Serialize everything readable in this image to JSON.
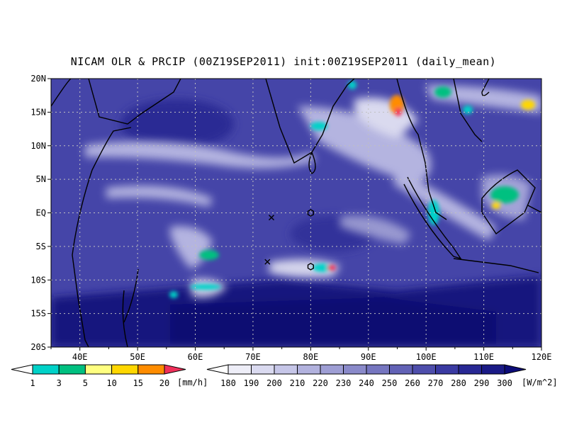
{
  "title": "NICAM OLR & PRCIP (00Z19SEP2011) init:00Z19SEP2011 (daily_mean)",
  "map": {
    "lat_range": [
      -20,
      20
    ],
    "lon_range": [
      35,
      120
    ],
    "lat_ticks": [
      "20N",
      "15N",
      "10N",
      "5N",
      "EQ",
      "5S",
      "10S",
      "15S",
      "20S"
    ],
    "lon_ticks": [
      "40E",
      "50E",
      "60E",
      "70E",
      "80E",
      "90E",
      "100E",
      "110E",
      "120E"
    ],
    "grid": "dotted",
    "markers": [
      {
        "type": "cross-icon",
        "lon": 73.2,
        "lat": -0.7
      },
      {
        "type": "hexagon-icon",
        "lon": 80.0,
        "lat": 0.0
      },
      {
        "type": "cross-icon",
        "lon": 72.5,
        "lat": -7.3
      },
      {
        "type": "hexagon-icon",
        "lon": 80.0,
        "lat": -8.0
      }
    ]
  },
  "precip_legend": {
    "unit": "[mm/h]",
    "labels": [
      "1",
      "3",
      "5",
      "10",
      "15",
      "20"
    ],
    "colors": [
      "#ffffff",
      "#00d2c8",
      "#00c080",
      "#ffff80",
      "#ffd700",
      "#ff8c00",
      "#f0305a"
    ]
  },
  "olr_legend": {
    "unit": "[W/m^2]",
    "labels": [
      "180",
      "190",
      "200",
      "210",
      "220",
      "230",
      "240",
      "250",
      "260",
      "270",
      "280",
      "290",
      "300"
    ],
    "colors": [
      "#ffffff",
      "#eeeef8",
      "#dadaf0",
      "#c6c6e8",
      "#b2b2de",
      "#9e9ed4",
      "#8a8aca",
      "#7676c0",
      "#6262b6",
      "#4e4eac",
      "#3a3aa2",
      "#282894",
      "#1a1a86",
      "#0c0c78"
    ]
  }
}
